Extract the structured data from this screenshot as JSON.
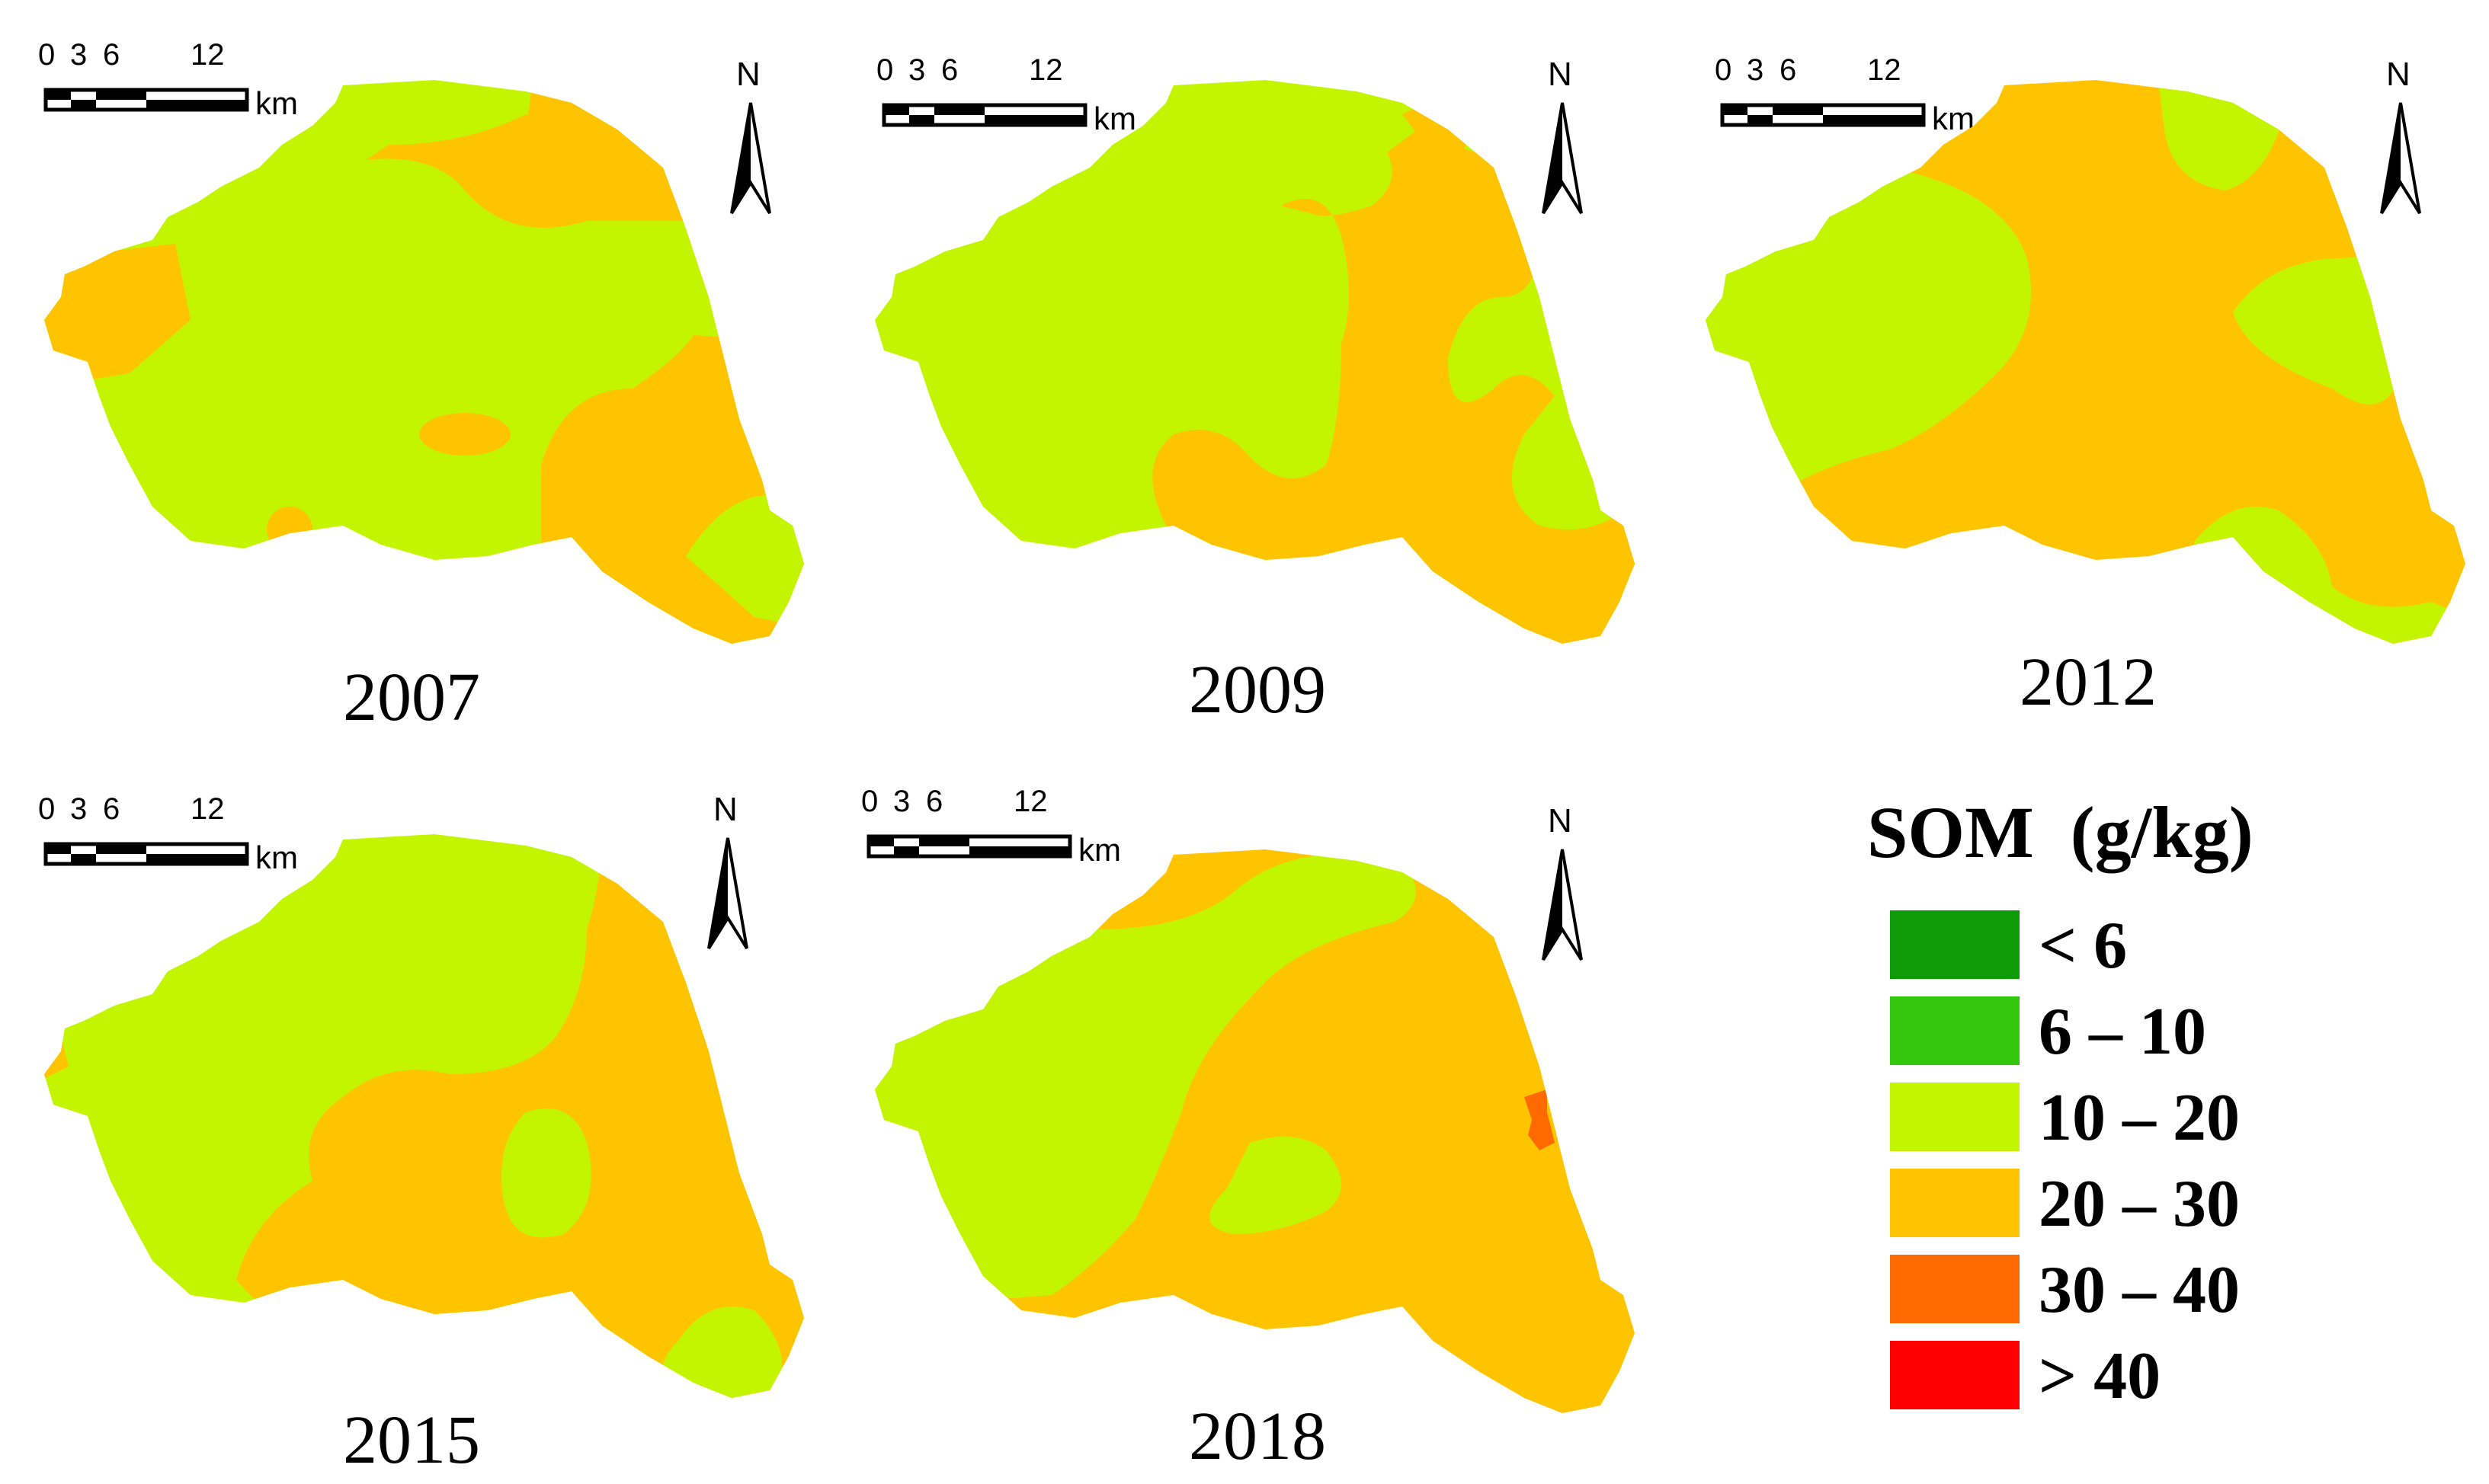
{
  "scale_bar": {
    "tick_labels": [
      "0",
      "3",
      "6",
      "12"
    ],
    "unit": "km"
  },
  "north_arrow": {
    "label": "N",
    "icon": "north-arrow-icon"
  },
  "maps": [
    {
      "year": "2007"
    },
    {
      "year": "2009"
    },
    {
      "year": "2012"
    },
    {
      "year": "2015"
    },
    {
      "year": "2018"
    }
  ],
  "legend": {
    "title": "SOM  (g/kg)",
    "items": [
      {
        "label": "< 6",
        "color": "#0d9c06"
      },
      {
        "label": "6 – 10",
        "color": "#33c80c"
      },
      {
        "label": "10 – 20",
        "color": "#c4f500"
      },
      {
        "label": "20 – 30",
        "color": "#ffc400"
      },
      {
        "label": "30 – 40",
        "color": "#ff6a00"
      },
      {
        "label": "> 40",
        "color": "#ff0000"
      }
    ]
  }
}
